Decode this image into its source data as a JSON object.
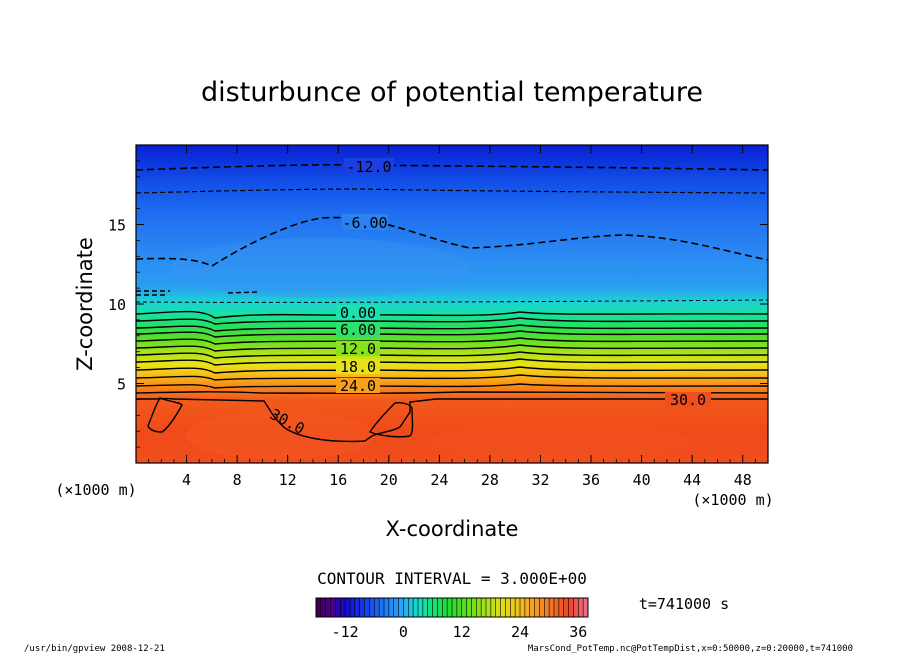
{
  "chart_data": {
    "type": "contour",
    "title": "disturbunce of potential temperature",
    "xlabel": "X-coordinate",
    "ylabel": "Z-coordinate",
    "x_unit_left": "(×1000 m)",
    "x_unit_right": "(×1000 m)",
    "xlim": [
      0,
      50
    ],
    "ylim": [
      0,
      20
    ],
    "x_ticks": [
      4,
      8,
      12,
      16,
      20,
      24,
      28,
      32,
      36,
      40,
      44,
      48
    ],
    "y_ticks": [
      5,
      10,
      15
    ],
    "contour_interval": "CONTOUR INTERVAL = 3.000E+00",
    "contour_labels": [
      {
        "value": "-12.0",
        "x": 19,
        "z": 18.6
      },
      {
        "value": "-6.00",
        "x": 18,
        "z": 14.9
      },
      {
        "value": "0.00",
        "x": 17.5,
        "z": 9.4
      },
      {
        "value": "6.00",
        "x": 17.5,
        "z": 8.2
      },
      {
        "value": "12.0",
        "x": 17.5,
        "z": 7.0
      },
      {
        "value": "18.0",
        "x": 17.5,
        "z": 5.9
      },
      {
        "value": "24.0",
        "x": 17.5,
        "z": 4.7
      },
      {
        "value": "30.0",
        "x": 43,
        "z": 3.9
      },
      {
        "value": "30.0",
        "x": 11.8,
        "z": 2.4
      }
    ],
    "field_summary": [
      {
        "z_range": [
          0,
          4
        ],
        "theta_prime": 33
      },
      {
        "z_range": [
          4,
          9.5
        ],
        "theta_prime": "27 to 0"
      },
      {
        "z_range": [
          9.5,
          17
        ],
        "theta_prime": "-3 to -9"
      },
      {
        "z_range": [
          17,
          20
        ],
        "theta_prime": "-9 to -15"
      }
    ],
    "colorbar": {
      "range": [
        -18,
        38
      ],
      "tick_labels": [
        "-12",
        "0",
        "12",
        "24",
        "36"
      ],
      "tick_values": [
        -12,
        0,
        12,
        24,
        36
      ]
    },
    "time_label": "t=741000 s"
  },
  "footer": {
    "left": "/usr/bin/gpview   2008-12-21",
    "right": "MarsCond_PotTemp.nc@PotTempDist,x=0:50000,z=0:20000,t=741000"
  },
  "colors": {
    "low": "#0a2ad6",
    "mid": "#1ec88a",
    "high": "#f04a1a",
    "contour": "#000000"
  }
}
